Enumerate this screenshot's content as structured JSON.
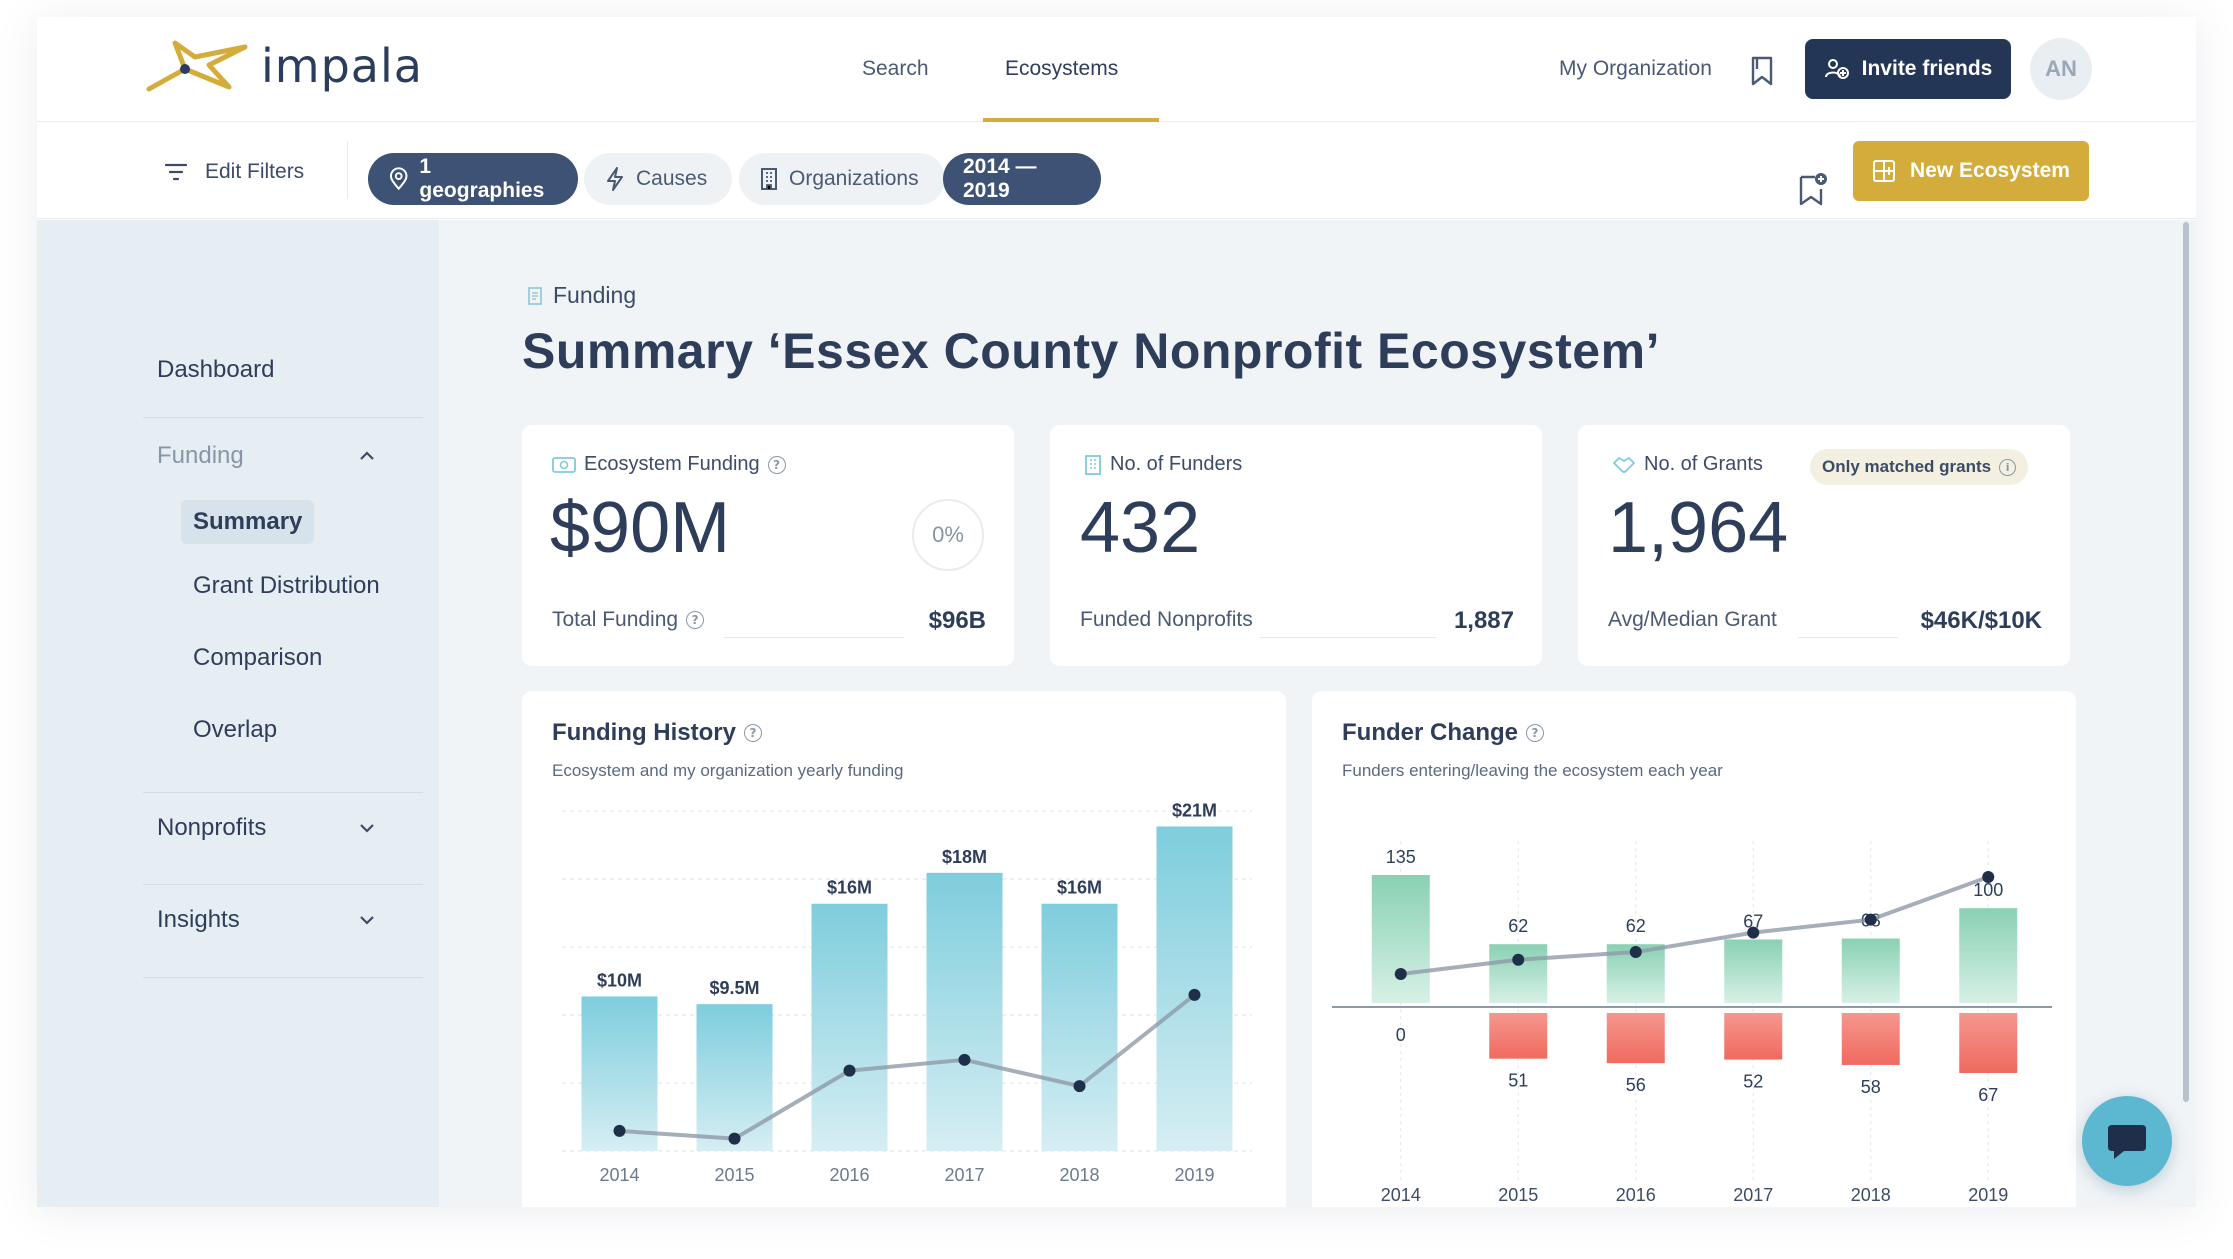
{
  "app": {
    "name": "impala"
  },
  "nav": {
    "search": "Search",
    "ecosystems": "Ecosystems",
    "my_organization": "My Organization",
    "invite_label": "Invite friends",
    "avatar_initials": "AN"
  },
  "filters": {
    "edit_label": "Edit Filters",
    "chips": [
      {
        "label": "1 geographies",
        "active": true,
        "icon": "map-pin-icon"
      },
      {
        "label": "Causes",
        "active": false,
        "icon": "bolt-icon"
      },
      {
        "label": "Organizations",
        "active": false,
        "icon": "building-icon"
      },
      {
        "label": "2014 — 2019",
        "active": true
      }
    ],
    "new_ecosystem_label": "New Ecosystem"
  },
  "sidebar": {
    "dashboard": "Dashboard",
    "funding": "Funding",
    "funding_items": [
      "Summary",
      "Grant Distribution",
      "Comparison",
      "Overlap"
    ],
    "nonprofits": "Nonprofits",
    "insights": "Insights"
  },
  "page": {
    "breadcrumb": "Funding",
    "title": "Summary ‘Essex County Nonprofit Ecosystem’"
  },
  "stats": {
    "ecosystem_funding": {
      "label": "Ecosystem Funding",
      "value": "$90M",
      "pct": "0%",
      "sub_label": "Total Funding",
      "sub_value": "$96B"
    },
    "funders": {
      "label": "No. of Funders",
      "value": "432",
      "sub_label": "Funded Nonprofits",
      "sub_value": "1,887"
    },
    "grants": {
      "label": "No. of Grants",
      "badge": "Only matched grants",
      "value": "1,964",
      "sub_label": "Avg/Median Grant",
      "sub_value": "$46K/$10K"
    }
  },
  "funding_history": {
    "title": "Funding History",
    "subtitle": "Ecosystem and my organization yearly funding"
  },
  "funder_change": {
    "title": "Funder Change",
    "subtitle": "Funders entering/leaving the ecosystem each year"
  },
  "colors": {
    "accent": "#d4ac3b",
    "navy": "#243656",
    "bar_teal": "#7fcbdb",
    "enter_green": "#86cfb0",
    "leave_red": "#f27a70"
  },
  "chart_data": [
    {
      "type": "bar",
      "title": "Funding History",
      "categories": [
        "2014",
        "2015",
        "2016",
        "2017",
        "2018",
        "2019"
      ],
      "series": [
        {
          "values": [
            10,
            9.5,
            16,
            18,
            16,
            21
          ],
          "labels": [
            "$10M",
            "$9.5M",
            "$16M",
            "$18M",
            "$16M",
            "$21M"
          ]
        },
        {
          "type": "line",
          "values": [
            1.3,
            0.8,
            5.2,
            5.9,
            4.2,
            10.1
          ]
        }
      ],
      "ylim": [
        0,
        22
      ],
      "grid": true
    },
    {
      "type": "bar",
      "title": "Funder Change",
      "categories": [
        "2014",
        "2015",
        "2016",
        "2017",
        "2018",
        "2019"
      ],
      "series": [
        {
          "values": [
            135,
            62,
            62,
            67,
            68,
            100
          ]
        },
        {
          "values": [
            0,
            51,
            56,
            52,
            58,
            67
          ]
        },
        {
          "type": "line",
          "values": [
            135,
            146,
            152,
            167,
            177,
            210
          ]
        }
      ]
    }
  ]
}
